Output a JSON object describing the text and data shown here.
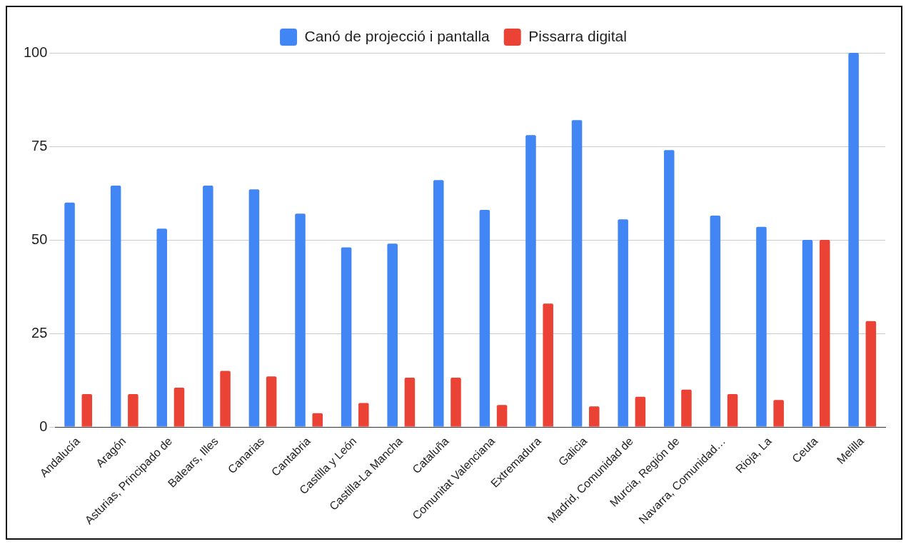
{
  "chart_data": {
    "type": "bar",
    "categories": [
      "Andalucía",
      "Aragón",
      "Asturias, Principado de",
      "Balears, Illes",
      "Canarias",
      "Cantabria",
      "Castilla y León",
      "Castilla-La Mancha",
      "Cataluña",
      "Comunitat Valenciana",
      "Extremadura",
      "Galicia",
      "Madrid, Comunidad de",
      "Murcia, Región de",
      "Navarra, Comunidad…",
      "Rioja, La",
      "Ceuta",
      "Melilla"
    ],
    "series": [
      {
        "name": "Canó de projecció i pantalla",
        "color": "#4285f4",
        "values": [
          60,
          64.5,
          53,
          64.5,
          63.5,
          57,
          48,
          49,
          66,
          58,
          78,
          82,
          55.5,
          74,
          56.5,
          53.5,
          50,
          100
        ]
      },
      {
        "name": "Pissarra digital",
        "color": "#ea4335",
        "values": [
          8.8,
          8.8,
          10.5,
          15,
          13.5,
          3.7,
          6.4,
          13.2,
          13.2,
          5.9,
          33,
          5.5,
          8.1,
          10,
          8.8,
          7.2,
          50,
          28.3
        ]
      }
    ],
    "ylim": [
      0,
      100
    ],
    "yticks": [
      0,
      25,
      50,
      75,
      100
    ],
    "grid": "y",
    "legend": "top"
  }
}
